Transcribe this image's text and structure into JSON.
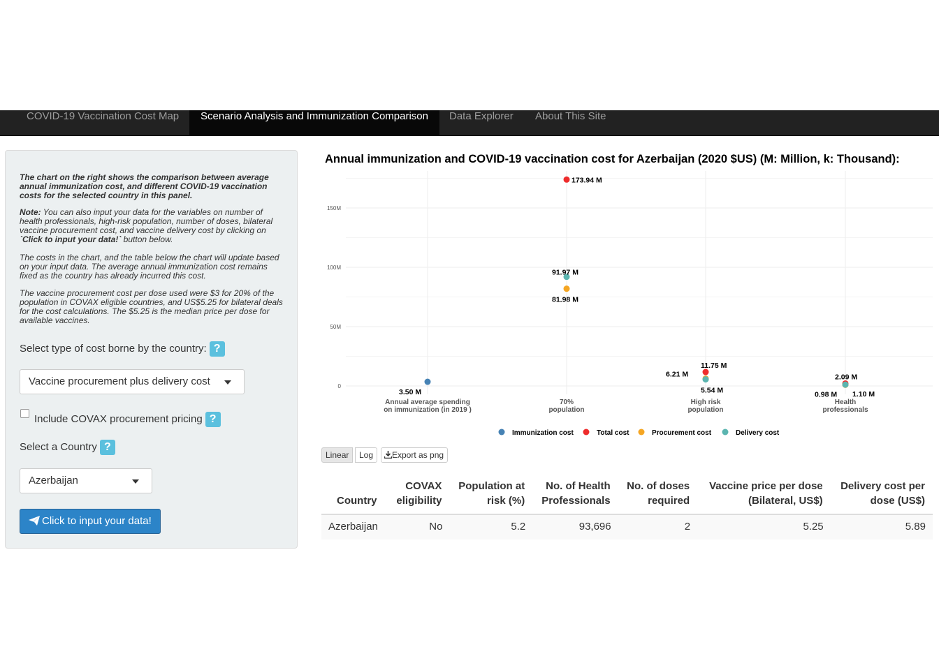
{
  "nav": {
    "tabs": [
      {
        "label": "COVID-19 Vaccination Cost Map"
      },
      {
        "label": "Scenario Analysis and Immunization Comparison"
      },
      {
        "label": "Data Explorer"
      },
      {
        "label": "About This Site"
      }
    ],
    "active_index": 1
  },
  "sidebar": {
    "intro_bold": "The chart on the right shows the comparison between average annual immunization cost, and different COVID-19 vaccination costs for the selected country in this panel.",
    "note_label": "Note:",
    "note_text_a": " You can also input your data for the variables on number of health professionals, high-risk population, number of doses, bilateral vaccine procurement cost, and vaccine delivery cost by clicking on ",
    "note_bold": "`Click to input your data!`",
    "note_text_b": " button below.",
    "para3": "The costs in the chart, and the table below the chart will update based on your input data. The average annual immunization cost remains fixed as the country has already incurred this cost.",
    "para4": "The vaccine procurement cost per dose used were $3 for 20% of the population in COVAX eligible countries, and US$5.25 for bilateral deals for the cost calculations. The $5.25 is the median price per dose for available vaccines.",
    "cost_type_label": "Select type of cost borne by the country:",
    "cost_type_value": "Vaccine procurement plus delivery cost",
    "covax_label": "Include COVAX procurement pricing",
    "covax_checked": false,
    "country_label": "Select a Country",
    "country_value": "Azerbaijan",
    "input_button": "Click to input your data!",
    "help_glyph": "?"
  },
  "chart_title": "Annual immunization and COVID-19 vaccination cost for Azerbaijan (2020 $US) (M: Million, k: Thousand):",
  "chart_data": {
    "type": "scatter",
    "categories": [
      "Annual average spending on immunization (in 2019 )",
      "70% population",
      "High risk population",
      "Health professionals"
    ],
    "category_lines": [
      [
        "Annual average spending",
        "on immunization (in 2019 )"
      ],
      [
        "70%",
        "population"
      ],
      [
        "High risk",
        "population"
      ],
      [
        "Health",
        "professionals"
      ]
    ],
    "y_ticks": [
      {
        "value": 0,
        "label": "0"
      },
      {
        "value": 50,
        "label": "50M"
      },
      {
        "value": 100,
        "label": "100M"
      },
      {
        "value": 150,
        "label": "150M"
      }
    ],
    "ylim": [
      0,
      180
    ],
    "y_unit": "M",
    "series": [
      {
        "name": "Immunization cost",
        "color": "#4682b4",
        "values": [
          3.5,
          null,
          null,
          null
        ],
        "labels": [
          "3.50 M",
          null,
          null,
          null
        ]
      },
      {
        "name": "Total cost",
        "color": "#ee2c2c",
        "values": [
          null,
          173.94,
          11.75,
          2.09
        ],
        "labels": [
          null,
          "173.94 M",
          "11.75 M",
          "2.09 M"
        ]
      },
      {
        "name": "Procurement cost",
        "color": "#f5a623",
        "values": [
          null,
          81.98,
          6.21,
          0.98
        ],
        "labels": [
          null,
          "81.98 M",
          "6.21 M",
          "0.98 M"
        ]
      },
      {
        "name": "Delivery cost",
        "color": "#5bb5b0",
        "values": [
          null,
          91.97,
          5.54,
          1.1
        ],
        "labels": [
          null,
          "91.97 M",
          "5.54 M",
          "1.10 M"
        ]
      }
    ],
    "legend": "bottom-center",
    "grid": true
  },
  "toolbar": {
    "linear": "Linear",
    "log": "Log",
    "export": "Export as png"
  },
  "table": {
    "headers": [
      [
        "Country"
      ],
      [
        "COVAX",
        "eligibility"
      ],
      [
        "Population at",
        "risk (%)"
      ],
      [
        "No. of Health",
        "Professionals"
      ],
      [
        "No. of doses",
        "required"
      ],
      [
        "Vaccine price per dose",
        "(Bilateral, US$)"
      ],
      [
        "Delivery cost per",
        "dose (US$)"
      ]
    ],
    "rows": [
      [
        "Azerbaijan",
        "No",
        "5.2",
        "93,696",
        "2",
        "5.25",
        "5.89"
      ]
    ]
  }
}
